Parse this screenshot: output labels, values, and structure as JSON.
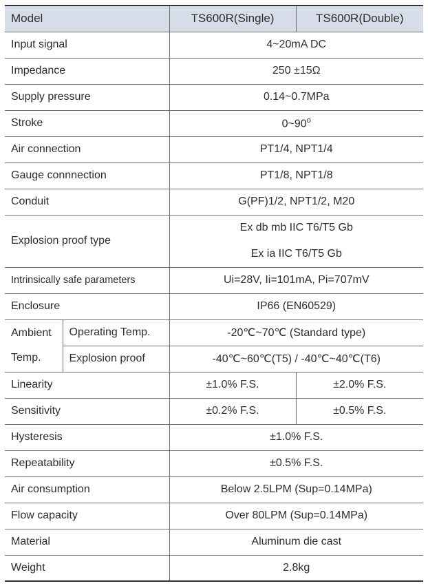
{
  "header": {
    "model": "Model",
    "single": "TS600R(Single)",
    "double": "TS600R(Double)"
  },
  "rows": {
    "input_signal": {
      "label": "Input signal",
      "value": "4~20mA DC"
    },
    "impedance": {
      "label": "Impedance",
      "value": "250 ±15Ω"
    },
    "supply_pressure": {
      "label": "Supply pressure",
      "value": "0.14~0.7MPa"
    },
    "stroke": {
      "label": "Stroke",
      "value": "0~90",
      "unit_sup": "o"
    },
    "air_connection": {
      "label": "Air connection",
      "value": "PT1/4, NPT1/4"
    },
    "gauge_connection": {
      "label": "Gauge connnection",
      "value": "PT1/8, NPT1/8"
    },
    "conduit": {
      "label": "Conduit",
      "value": "G(PF)1/2, NPT1/2, M20"
    },
    "explosion_proof": {
      "label": "Explosion proof type",
      "value1": "Ex db mb IIC T6/T5 Gb",
      "value2": "Ex ia IIC T6/T5 Gb"
    },
    "intrinsic": {
      "label": "Intrinsically safe parameters",
      "value": "Ui=28V, Ii=101mA, Pi=707mV"
    },
    "enclosure": {
      "label": "Enclosure",
      "value": "IP66 (EN60529)"
    },
    "ambient": {
      "label_line1": "Ambient",
      "label_line2": "Temp.",
      "op_label": "Operating Temp.",
      "op_value": "-20℃~70℃ (Standard type)",
      "ex_label": "Explosion proof",
      "ex_value": "-40℃~60℃(T5) / -40℃~40℃(T6)"
    },
    "linearity": {
      "label": "Linearity",
      "single": "±1.0% F.S.",
      "double": "±2.0% F.S."
    },
    "sensitivity": {
      "label": "Sensitivity",
      "single": "±0.2% F.S.",
      "double": "±0.5% F.S."
    },
    "hysteresis": {
      "label": "Hysteresis",
      "value": "±1.0% F.S."
    },
    "repeatability": {
      "label": "Repeatability",
      "value": "±0.5% F.S."
    },
    "air_consumption": {
      "label": "Air consumption",
      "value": "Below 2.5LPM (Sup=0.14MPa)"
    },
    "flow_capacity": {
      "label": "Flow capacity",
      "value": "Over 80LPM (Sup=0.14MPa)"
    },
    "material": {
      "label": "Material",
      "value": "Aluminum die cast"
    },
    "weight": {
      "label": "Weight",
      "value": "2.8kg"
    }
  }
}
